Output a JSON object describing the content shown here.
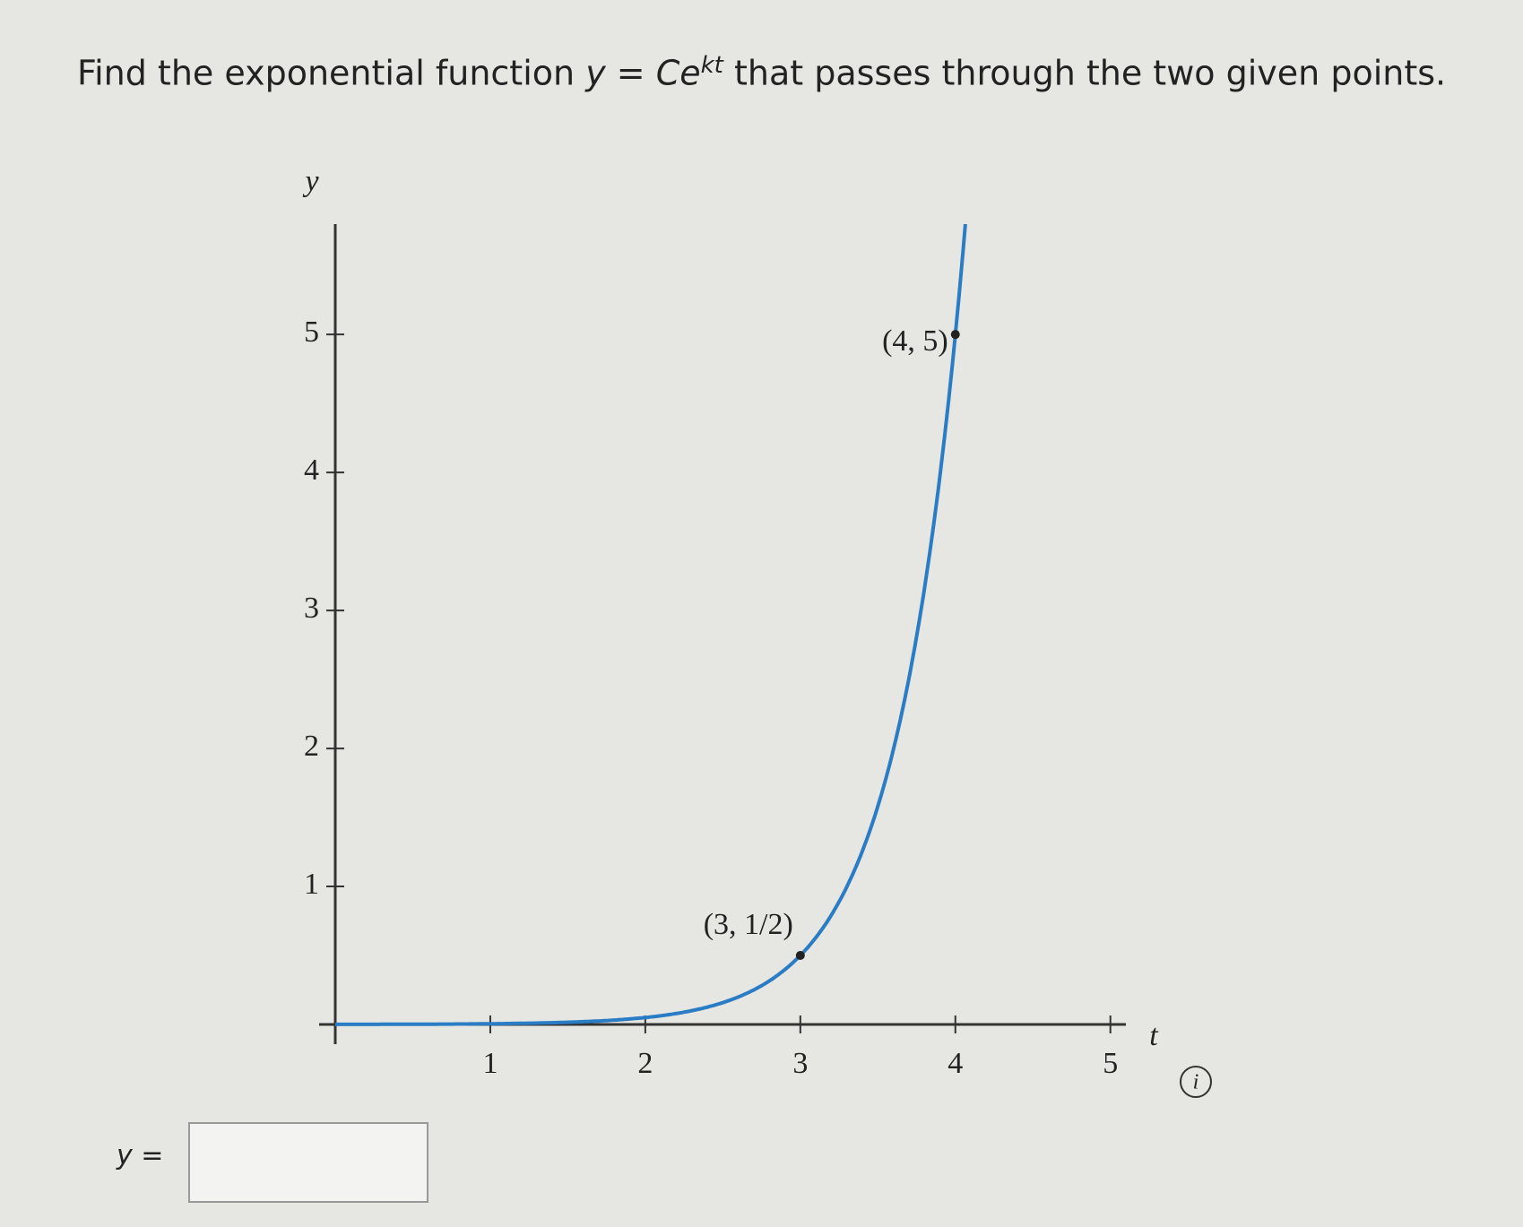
{
  "question": {
    "before": "Find the exponential function",
    "formula": "y = Ce",
    "exponent": "kt",
    "after": "that passes through the two given points."
  },
  "answer_label": "y =",
  "info_icon": "i",
  "chart_data": {
    "type": "scatter",
    "x_label": "t",
    "y_label": "y",
    "x": [
      3,
      4
    ],
    "values": [
      0.5,
      5
    ],
    "value_labels": [
      "(3, 1/2)",
      "(4, 5)"
    ],
    "color": "#2a7cc4",
    "xlim": [
      0,
      5.1
    ],
    "ylim": [
      0,
      5.8
    ],
    "xticks": [
      1,
      2,
      3,
      4,
      5
    ],
    "yticks": [
      1,
      2,
      3,
      4,
      5
    ]
  }
}
